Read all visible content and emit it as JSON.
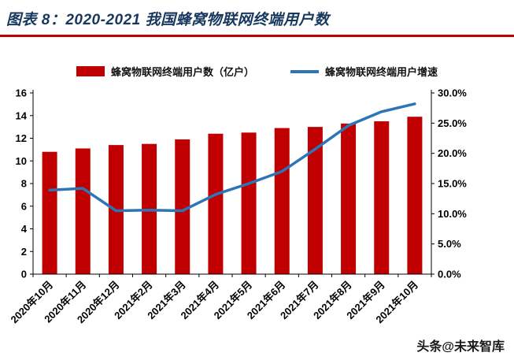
{
  "header": {
    "title": "图表 8：2020-2021 我国蜂窝物联网终端用户数"
  },
  "footer": {
    "watermark": "头条@未来智库"
  },
  "colors": {
    "bar": "#C00000",
    "line": "#2E75B6",
    "title": "#17375E",
    "underline": "#C00000",
    "axis": "#000000"
  },
  "chart_data": {
    "type": "bar+line",
    "title": "图表 8：2020-2021 我国蜂窝物联网终端用户数",
    "categories": [
      "2020年10月",
      "2020年11月",
      "2020年12月",
      "2021年2月",
      "2021年3月",
      "2021年4月",
      "2021年5月",
      "2021年6月",
      "2021年7月",
      "2021年8月",
      "2021年9月",
      "2021年10月"
    ],
    "series": [
      {
        "name": "蜂窝物联网终端用户数（亿户）",
        "type": "bar",
        "axis": "left",
        "values": [
          10.8,
          11.1,
          11.4,
          11.5,
          11.9,
          12.4,
          12.5,
          12.9,
          13.0,
          13.3,
          13.5,
          13.9
        ]
      },
      {
        "name": "蜂窝物联网终端用户增速",
        "type": "line",
        "axis": "right",
        "values": [
          13.9,
          14.2,
          10.5,
          10.6,
          10.5,
          13.2,
          15.0,
          17.0,
          20.7,
          24.6,
          26.9,
          28.2
        ]
      }
    ],
    "axes": {
      "left": {
        "min": 0,
        "max": 16,
        "step": 2
      },
      "right": {
        "min": 0,
        "max": 30,
        "step": 5,
        "format": "percent1"
      }
    },
    "legend_position": "top",
    "grid": false
  }
}
